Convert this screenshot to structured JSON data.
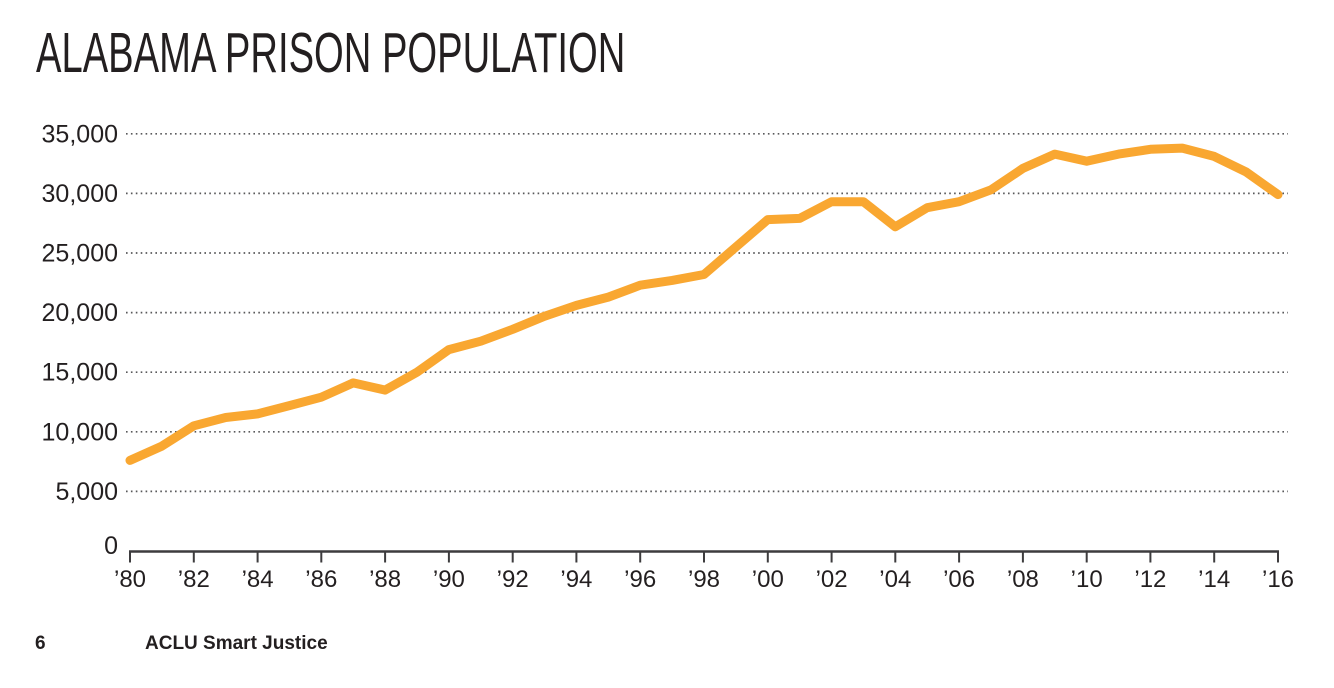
{
  "page": {
    "title": "ALABAMA PRISON POPULATION",
    "footer": {
      "page_number": "6",
      "brand": "ACLU Smart Justice"
    }
  },
  "colors": {
    "line": "#F9A731",
    "grid_dots": "#58585a",
    "axis": "#3d3c3e",
    "text": "#231f20"
  },
  "chart_data": {
    "type": "line",
    "title": "ALABAMA PRISON POPULATION",
    "series_name": "Alabama prison population",
    "x": [
      1980,
      1981,
      1982,
      1983,
      1984,
      1985,
      1986,
      1987,
      1988,
      1989,
      1990,
      1991,
      1992,
      1993,
      1994,
      1995,
      1996,
      1997,
      1998,
      1999,
      2000,
      2001,
      2002,
      2003,
      2004,
      2005,
      2006,
      2007,
      2008,
      2009,
      2010,
      2011,
      2012,
      2013,
      2014,
      2015,
      2016
    ],
    "values": [
      7600,
      8800,
      10500,
      11200,
      11500,
      12200,
      12900,
      14100,
      13500,
      15000,
      16900,
      17600,
      18600,
      19700,
      20600,
      21300,
      22300,
      22700,
      23200,
      25500,
      27800,
      27900,
      29300,
      29300,
      27200,
      28800,
      29300,
      30300,
      32100,
      33300,
      32700,
      33300,
      33700,
      33800,
      33100,
      31800,
      29900
    ],
    "xlim": [
      1980,
      2016
    ],
    "ylim": [
      0,
      35000
    ],
    "xtick_labels": [
      "’80",
      "’82",
      "’84",
      "’86",
      "’88",
      "’90",
      "’92",
      "’94",
      "’96",
      "’98",
      "’00",
      "’02",
      "’04",
      "’06",
      "’08",
      "’10",
      "’12",
      "’14",
      "’16"
    ],
    "xtick_years": [
      1980,
      1982,
      1984,
      1986,
      1988,
      1990,
      1992,
      1994,
      1996,
      1998,
      2000,
      2002,
      2004,
      2006,
      2008,
      2010,
      2012,
      2014,
      2016
    ],
    "ytick_values": [
      0,
      5000,
      10000,
      15000,
      20000,
      25000,
      30000,
      35000
    ],
    "ytick_labels": [
      "0",
      "5,000",
      "10,000",
      "15,000",
      "20,000",
      "25,000",
      "30,000",
      "35,000"
    ],
    "xlabel": "",
    "ylabel": "",
    "grid": "horizontal dotted lines at each 5,000 increment",
    "legend": "none",
    "line_color": "#F9A731"
  }
}
